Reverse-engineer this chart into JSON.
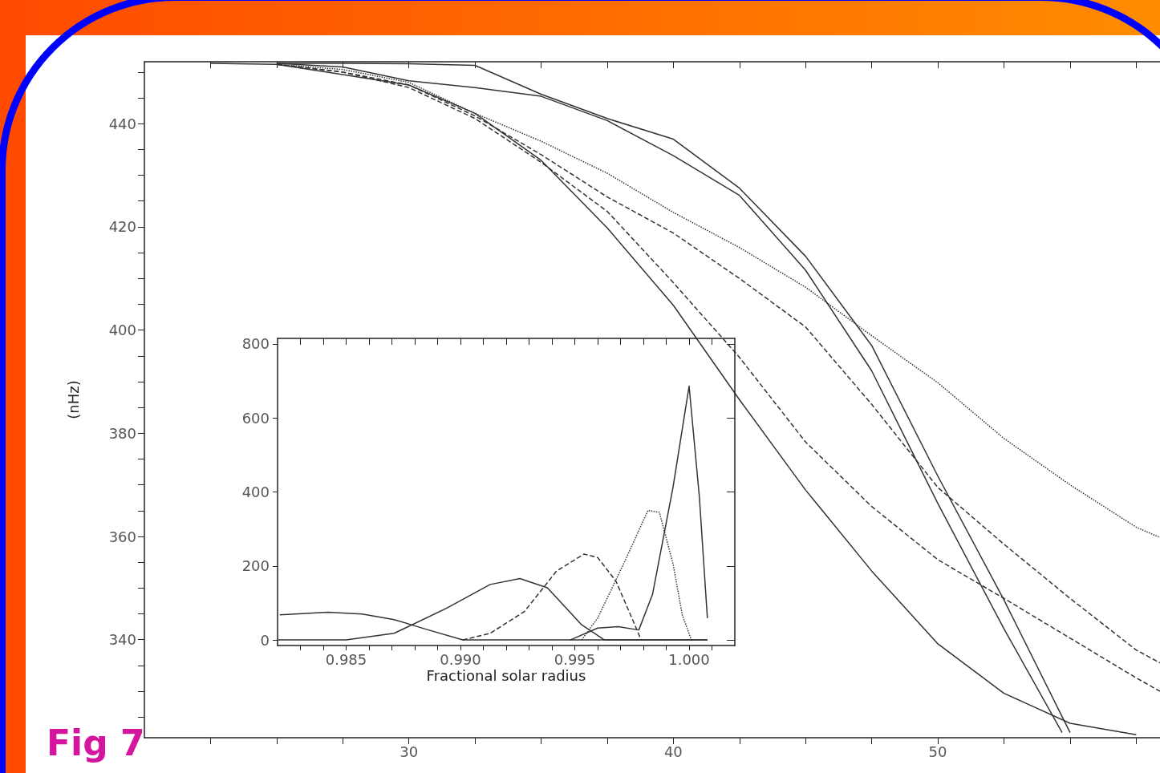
{
  "chart_data": [
    {
      "type": "line",
      "ylabel": "(nHz)",
      "annotations": [
        "Fig 7"
      ],
      "xlim": [
        20,
        58.4
      ],
      "ylim": [
        321,
        452
      ],
      "marker": "none",
      "xticks": [
        {
          "value": 22.5,
          "label": null
        },
        {
          "value": 25,
          "label": null
        },
        {
          "value": 27.5,
          "label": null
        },
        30,
        {
          "value": 32.5,
          "label": null
        },
        {
          "value": 35,
          "label": null
        },
        {
          "value": 37.5,
          "label": null
        },
        40,
        {
          "value": 42.5,
          "label": null
        },
        {
          "value": 45,
          "label": null
        },
        {
          "value": 47.5,
          "label": null
        },
        50,
        {
          "value": 52.5,
          "label": null
        },
        {
          "value": 55,
          "label": null
        },
        {
          "value": 57.5,
          "label": null
        }
      ],
      "yticks": [
        {
          "value": 325,
          "label": null
        },
        {
          "value": 330,
          "label": null
        },
        {
          "value": 335,
          "label": null
        },
        340,
        {
          "value": 345,
          "label": null
        },
        {
          "value": 350,
          "label": null
        },
        {
          "value": 355,
          "label": null
        },
        360,
        {
          "value": 365,
          "label": null
        },
        {
          "value": 370,
          "label": null
        },
        {
          "value": 375,
          "label": null
        },
        380,
        {
          "value": 385,
          "label": null
        },
        {
          "value": 390,
          "label": null
        },
        {
          "value": 395,
          "label": null
        },
        400,
        {
          "value": 405,
          "label": null
        },
        {
          "value": 410,
          "label": null
        },
        {
          "value": 415,
          "label": null
        },
        420,
        {
          "value": 425,
          "label": null
        },
        {
          "value": 430,
          "label": null
        },
        {
          "value": 435,
          "label": null
        },
        440,
        {
          "value": 445,
          "label": null
        },
        {
          "value": 450,
          "label": null
        }
      ],
      "series": [
        {
          "color": "#333333",
          "line_style": "solid",
          "x": [
            25,
            27.5,
            30,
            32.5,
            35,
            37.5,
            40,
            42.5,
            45,
            47.5,
            50,
            52.5,
            55
          ],
          "values": [
            451.7,
            451.7,
            451.6,
            451.3,
            445.7,
            441,
            437,
            427.5,
            414.3,
            397,
            371.7,
            347.7,
            322
          ]
        },
        {
          "color": "#333333",
          "line_style": "solid",
          "x": [
            25,
            27.5,
            30,
            32.5,
            35,
            37.5,
            40,
            42.5,
            45,
            47.5,
            50,
            52.5,
            54.7
          ],
          "values": [
            451.7,
            451,
            448.3,
            447,
            445.3,
            440.6,
            433.8,
            426.1,
            411.6,
            392.1,
            366.4,
            342.1,
            322
          ]
        },
        {
          "color": "#333333",
          "line_style": "solid",
          "x": [
            22.5,
            25,
            27.5,
            30,
            32.5,
            35,
            37.5,
            40,
            42.5,
            45,
            47.5,
            50,
            52.5,
            55,
            57.5
          ],
          "values": [
            451.7,
            451.5,
            449.5,
            447.5,
            442,
            432.9,
            419.8,
            404.8,
            386.5,
            369,
            353.3,
            339.2,
            329.6,
            323.8,
            321.6
          ]
        },
        {
          "color": "#333333",
          "line_style": "dashed",
          "x": [
            25,
            27.5,
            30,
            32.5,
            35,
            37.5,
            40,
            42.5,
            45,
            47.5,
            50,
            52.5,
            55,
            57.5,
            58.4
          ],
          "values": [
            451.5,
            450,
            447,
            441,
            432.5,
            423,
            409.2,
            394.7,
            378.3,
            365.8,
            355.5,
            348,
            340.3,
            332.6,
            330
          ]
        },
        {
          "color": "#333333",
          "line_style": "dashed",
          "x": [
            25,
            27.5,
            30,
            32.5,
            35,
            37.5,
            40,
            42.5,
            45,
            47.5,
            50,
            52.5,
            55,
            57.5,
            58.4
          ],
          "values": [
            451.5,
            450,
            447.5,
            441.5,
            434,
            425.8,
            418.8,
            410,
            400.6,
            385.6,
            369.5,
            358.5,
            348,
            338,
            335.5
          ]
        },
        {
          "color": "#333333",
          "line_style": "dotted",
          "x": [
            25,
            27.5,
            30,
            32.5,
            35,
            37.5,
            40,
            42.5,
            45,
            47.5,
            50,
            52.5,
            55,
            57.5,
            58.4
          ],
          "values": [
            451.5,
            450.5,
            448,
            442,
            436.6,
            430.4,
            422.8,
            416,
            408.3,
            398.9,
            389.8,
            379,
            370,
            361.8,
            359.8
          ]
        }
      ]
    },
    {
      "type": "line",
      "xlabel": "Fractional solar radius",
      "xlim": [
        0.982,
        1.002
      ],
      "ylim": [
        -15,
        815
      ],
      "marker": "none",
      "xticks": [
        {
          "value": 0.983,
          "label": null
        },
        {
          "value": 0.984,
          "label": null
        },
        0.985,
        {
          "value": 0.986,
          "label": null
        },
        {
          "value": 0.987,
          "label": null
        },
        {
          "value": 0.988,
          "label": null
        },
        {
          "value": 0.989,
          "label": null
        },
        {
          "value": 0.99,
          "label": "0.990"
        },
        {
          "value": 0.991,
          "label": null
        },
        {
          "value": 0.992,
          "label": null
        },
        {
          "value": 0.993,
          "label": null
        },
        {
          "value": 0.994,
          "label": null
        },
        0.995,
        {
          "value": 0.996,
          "label": null
        },
        {
          "value": 0.997,
          "label": null
        },
        {
          "value": 0.998,
          "label": null
        },
        {
          "value": 0.999,
          "label": null
        },
        {
          "value": 1,
          "label": "1.000"
        },
        {
          "value": 1.001,
          "label": null
        }
      ],
      "yticks": [
        0,
        200,
        400,
        600,
        800
      ],
      "series": [
        {
          "color": "#333333",
          "line_style": "solid",
          "x": [
            0.9821,
            0.9842,
            0.9857,
            0.9871,
            0.9886,
            0.9901,
            0.995,
            1.0008
          ],
          "values": [
            68,
            75,
            70,
            55,
            27,
            0,
            0,
            0
          ]
        },
        {
          "color": "#333333",
          "line_style": "solid",
          "x": [
            0.982,
            0.985,
            0.9871,
            0.9894,
            0.9913,
            0.9926,
            0.9938,
            0.9953,
            0.9963,
            1.0008
          ],
          "values": [
            0,
            0,
            18,
            86,
            150,
            166,
            141,
            41,
            0,
            0
          ]
        },
        {
          "color": "#333333",
          "line_style": "dashed",
          "x": [
            0.9901,
            0.9913,
            0.9928,
            0.9942,
            0.9954,
            0.996,
            0.9968,
            0.9975,
            0.9979
          ],
          "values": [
            0,
            18,
            77,
            186,
            232,
            223,
            159,
            59,
            0
          ]
        },
        {
          "color": "#333333",
          "line_style": "dotted",
          "x": [
            0.9953,
            0.996,
            0.9972,
            0.9982,
            0.9987,
            0.9993,
            0.9997,
            1.0001
          ],
          "values": [
            0,
            59,
            214,
            350,
            345,
            205,
            68,
            0
          ]
        },
        {
          "color": "#333333",
          "line_style": "solid",
          "x": [
            0.9948,
            0.996,
            0.9969,
            0.9978,
            0.9984,
            0.9993,
            1,
            1.00045,
            1.0008
          ],
          "values": [
            0,
            32,
            36,
            27,
            123,
            414,
            686,
            386,
            59
          ]
        }
      ]
    }
  ]
}
